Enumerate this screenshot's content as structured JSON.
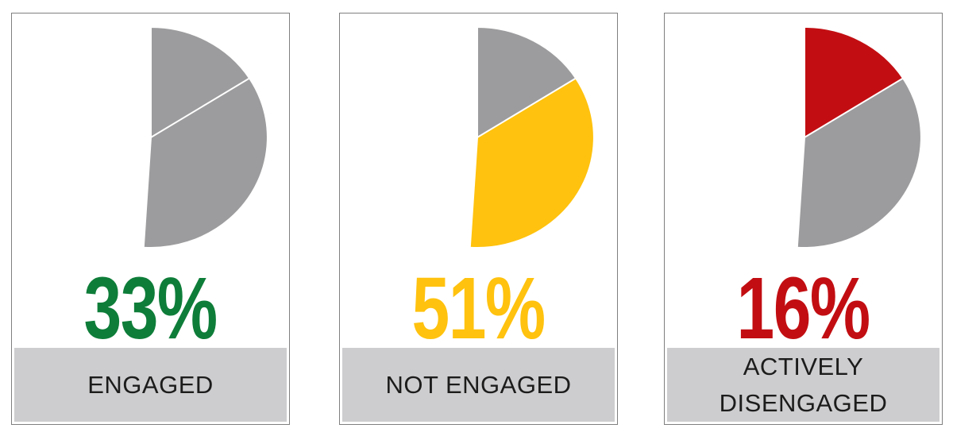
{
  "colors": {
    "engaged_green": "#0e7d39",
    "not_engaged_yellow": "#ffc20e",
    "actively_disengaged_red": "#c20e12",
    "muted_slice_gray": "#9c9c9e",
    "label_bar_gray": "#cdcdcf",
    "label_text": "#1c1c1c",
    "panel_border": "#7f7f7f",
    "slice_divider": "#ffffff"
  },
  "chart_data": [
    {
      "type": "pie",
      "title": "ENGAGED",
      "value_label": "33%",
      "categories": [
        "Engaged",
        "Not engaged",
        "Actively disengaged"
      ],
      "values": [
        33,
        51,
        16
      ],
      "highlight_index": 0,
      "highlight_color": "#0e7d39",
      "muted_color": "#9c9c9e",
      "start_angle_deg": 0,
      "direction": "clockwise",
      "legend_position": "none",
      "grid": false
    },
    {
      "type": "pie",
      "title": "NOT ENGAGED",
      "value_label": "51%",
      "categories": [
        "Engaged",
        "Not engaged",
        "Actively disengaged"
      ],
      "values": [
        33,
        51,
        16
      ],
      "highlight_index": 1,
      "highlight_color": "#ffc20e",
      "muted_color": "#9c9c9e",
      "start_angle_deg": 0,
      "direction": "clockwise",
      "legend_position": "none",
      "grid": false
    },
    {
      "type": "pie",
      "title": "ACTIVELY DISENGAGED",
      "value_label": "16%",
      "categories": [
        "Engaged",
        "Not engaged",
        "Actively disengaged"
      ],
      "values": [
        33,
        51,
        16
      ],
      "highlight_index": 2,
      "highlight_color": "#c20e12",
      "muted_color": "#9c9c9e",
      "start_angle_deg": 0,
      "direction": "clockwise",
      "legend_position": "none",
      "grid": false
    }
  ]
}
